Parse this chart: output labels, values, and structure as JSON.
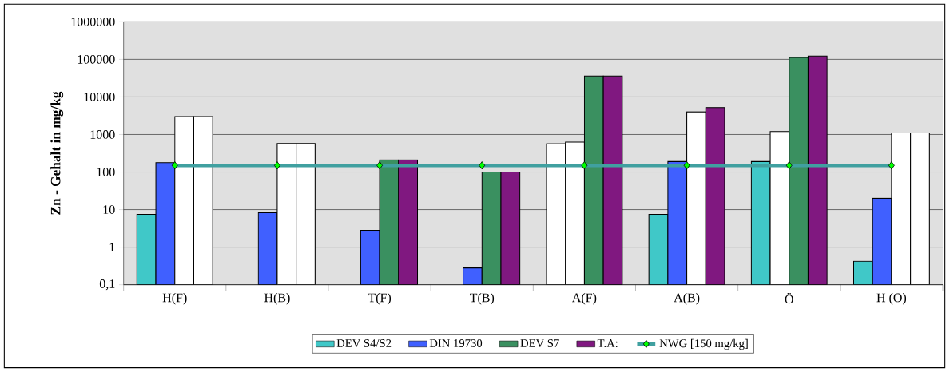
{
  "chart_data": {
    "type": "bar",
    "ylabel": "Zn - Gehalt in mg/kg",
    "log": true,
    "grid": "y",
    "legend": "bottom",
    "categories": [
      "H(F)",
      "H(B)",
      "T(F)",
      "T(B)",
      "A(F)",
      "A(B)",
      "Ö",
      "H (O)"
    ],
    "ylim": [
      0.1,
      1000000
    ],
    "yticks": [
      {
        "value": 0.1,
        "label": "0,1"
      },
      1,
      10,
      100,
      1000,
      10000,
      100000,
      1000000
    ],
    "series": [
      {
        "name": "DEV S4/S2",
        "color": "#40c8c8",
        "values": [
          7.5,
          null,
          null,
          null,
          570,
          7.5,
          190,
          0.42
        ],
        "colors": [
          "#40c8c8",
          "#40c8c8",
          "#40c8c8",
          "#40c8c8",
          "#ffffff",
          "#40c8c8",
          "#40c8c8",
          "#40c8c8"
        ]
      },
      {
        "name": "DIN 19730",
        "color": "#4060ff",
        "values": [
          178,
          8.3,
          2.8,
          0.28,
          630,
          190,
          1200,
          20
        ],
        "colors": [
          "#4060ff",
          "#4060ff",
          "#4060ff",
          "#4060ff",
          "#ffffff",
          "#4060ff",
          "#ffffff",
          "#4060ff"
        ]
      },
      {
        "name": "DEV S7",
        "color": "#3a9060",
        "values": [
          3000,
          575,
          210,
          100,
          36000,
          4000,
          112000,
          1100
        ],
        "colors": [
          "#ffffff",
          "#ffffff",
          "#3a9060",
          "#3a9060",
          "#3a9060",
          "#ffffff",
          "#3a9060",
          "#ffffff"
        ]
      },
      {
        "name": "T.A:",
        "color": "#801880",
        "values": [
          3000,
          575,
          210,
          100,
          36000,
          5200,
          123000,
          1100
        ],
        "colors": [
          "#ffffff",
          "#ffffff",
          "#801880",
          "#801880",
          "#801880",
          "#801880",
          "#801880",
          "#ffffff"
        ]
      },
      {
        "name": "NWG [150 mg/kg]",
        "type": "line",
        "color": "#40a0a0",
        "marker": "diamond",
        "values": [
          150,
          150,
          150,
          150,
          150,
          150,
          150,
          150
        ]
      }
    ]
  }
}
